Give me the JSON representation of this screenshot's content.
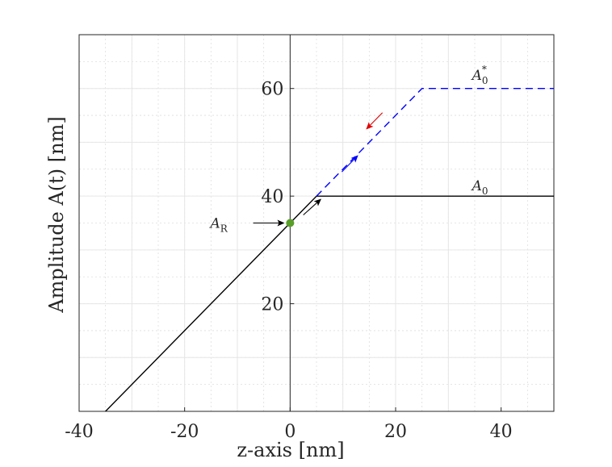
{
  "chart_data": {
    "type": "line",
    "xlabel": "z-axis [nm]",
    "ylabel": "Amplitude A(t) [nm]",
    "xlim": [
      -40,
      50
    ],
    "ylim": [
      0,
      70
    ],
    "x_ticks": [
      -40,
      -20,
      0,
      20,
      40
    ],
    "y_ticks": [
      20,
      40,
      60
    ],
    "x_tick_labels": [
      "-40",
      "-20",
      "0",
      "20",
      "40"
    ],
    "y_tick_labels": [
      "20",
      "40",
      "60"
    ],
    "grid": true,
    "minor_grid": true,
    "series": [
      {
        "style": "solid",
        "color": "#000000",
        "x": [
          -35,
          5,
          50
        ],
        "y": [
          0,
          40,
          40
        ]
      },
      {
        "style": "dashed",
        "color": "#0000ff",
        "x": [
          5,
          25,
          50
        ],
        "y": [
          40,
          60,
          60
        ]
      }
    ],
    "reference_point": {
      "label": "A_R",
      "x": 0,
      "y": 35,
      "color": "#5a9e2a"
    },
    "annotations": [
      {
        "name": "A_0",
        "base": "A",
        "sub": "0",
        "sup": "",
        "x": 36,
        "y": 42
      },
      {
        "name": "A_0^*",
        "base": "A",
        "sub": "0",
        "sup": "*",
        "x": 36,
        "y": 62.5
      },
      {
        "name": "A_R",
        "base": "A",
        "sub": "R",
        "sup": "",
        "x": -13.5,
        "y": 35
      }
    ],
    "arrows": [
      {
        "color": "#000000",
        "from": [
          2.5,
          36.5
        ],
        "to": [
          5.8,
          39.4
        ]
      },
      {
        "color": "#0000ff",
        "from": [
          9.8,
          44.5
        ],
        "to": [
          12.8,
          47.5
        ]
      },
      {
        "color": "#e00000",
        "from": [
          17.5,
          55.5
        ],
        "to": [
          14.5,
          52.5
        ]
      },
      {
        "color": "#000000",
        "from": [
          -7,
          35
        ],
        "to": [
          -1.2,
          35
        ]
      }
    ]
  }
}
